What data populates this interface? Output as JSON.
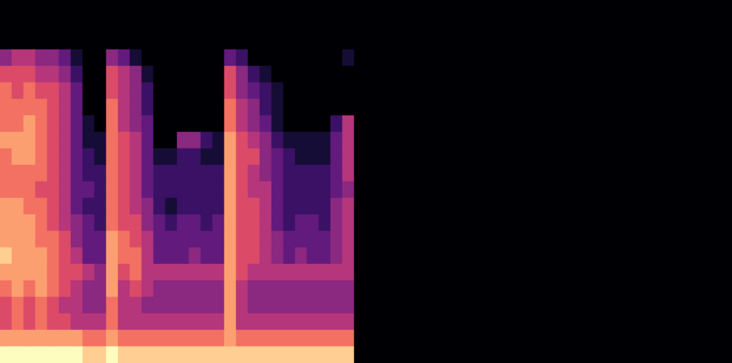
{
  "chart_data": {
    "type": "heatmap",
    "tick_labels": false,
    "cells": [
      [
        0,
        0,
        0,
        0,
        0,
        0,
        0,
        0,
        0,
        0,
        0,
        0,
        0,
        0,
        0,
        0,
        0,
        0,
        0,
        0,
        0,
        0,
        0,
        0,
        0,
        0,
        0,
        0,
        0,
        0,
        0,
        0,
        0,
        0,
        0,
        0,
        0,
        0,
        0,
        0,
        0,
        0,
        0,
        0,
        0,
        0,
        0,
        0,
        0,
        0,
        0,
        0,
        0,
        0,
        0,
        0,
        0,
        0,
        0,
        0,
        0,
        0
      ],
      [
        0,
        0,
        0,
        0,
        0,
        0,
        0,
        0,
        0,
        0,
        0,
        0,
        0,
        0,
        0,
        0,
        0,
        0,
        0,
        0,
        0,
        0,
        0,
        0,
        0,
        0,
        0,
        0,
        0,
        0,
        0,
        0,
        0,
        0,
        0,
        0,
        0,
        0,
        0,
        0,
        0,
        0,
        0,
        0,
        0,
        0,
        0,
        0,
        0,
        0,
        0,
        0,
        0,
        0,
        0,
        0,
        0,
        0,
        0,
        0,
        0,
        0
      ],
      [
        0,
        0,
        0,
        0,
        0,
        0,
        0,
        0,
        0,
        0,
        0,
        0,
        0,
        0,
        0,
        0,
        0,
        0,
        0,
        0,
        0,
        0,
        0,
        0,
        0,
        0,
        0,
        0,
        0,
        0,
        0,
        0,
        0,
        0,
        0,
        0,
        0,
        0,
        0,
        0,
        0,
        0,
        0,
        0,
        0,
        0,
        0,
        0,
        0,
        0,
        0,
        0,
        0,
        0,
        0,
        0,
        0,
        0,
        0,
        0,
        0,
        0
      ],
      [
        4,
        5,
        5,
        4,
        4,
        3,
        1,
        0,
        0,
        4,
        3,
        1,
        0,
        0,
        0,
        0,
        0,
        0,
        0,
        3,
        2,
        0,
        0,
        0,
        0,
        0,
        0,
        0,
        0,
        1,
        0,
        0,
        0,
        0,
        0,
        0,
        0,
        0,
        0,
        0,
        0,
        0,
        0,
        0,
        0,
        0,
        0,
        0,
        0,
        0,
        0,
        0,
        0,
        0,
        0,
        0,
        0,
        0,
        0,
        0,
        0,
        0
      ],
      [
        6,
        6,
        6,
        5,
        5,
        4,
        2,
        0,
        0,
        6,
        5,
        4,
        1,
        0,
        0,
        0,
        0,
        0,
        0,
        6,
        4,
        2,
        1,
        0,
        0,
        0,
        0,
        0,
        0,
        0,
        0,
        0,
        0,
        0,
        0,
        0,
        0,
        0,
        0,
        0,
        0,
        0,
        0,
        0,
        0,
        0,
        0,
        0,
        0,
        0,
        0,
        0,
        0,
        0,
        0,
        0,
        0,
        0,
        0,
        0,
        0,
        0
      ],
      [
        7,
        6,
        7,
        6,
        6,
        5,
        3,
        0,
        0,
        6,
        5,
        4,
        2,
        0,
        0,
        0,
        0,
        0,
        0,
        6,
        4,
        3,
        2,
        1,
        0,
        0,
        0,
        0,
        0,
        0,
        0,
        0,
        0,
        0,
        0,
        0,
        0,
        0,
        0,
        0,
        0,
        0,
        0,
        0,
        0,
        0,
        0,
        0,
        0,
        0,
        0,
        0,
        0,
        0,
        0,
        0,
        0,
        0,
        0,
        0,
        0,
        0
      ],
      [
        7,
        7,
        7,
        7,
        6,
        5,
        3,
        0,
        0,
        7,
        5,
        4,
        2,
        0,
        0,
        0,
        0,
        0,
        0,
        7,
        5,
        4,
        2,
        1,
        0,
        0,
        0,
        0,
        0,
        0,
        0,
        0,
        0,
        0,
        0,
        0,
        0,
        0,
        0,
        0,
        0,
        0,
        0,
        0,
        0,
        0,
        0,
        0,
        0,
        0,
        0,
        0,
        0,
        0,
        0,
        0,
        0,
        0,
        0,
        0,
        0,
        0
      ],
      [
        7,
        7,
        8,
        7,
        6,
        5,
        3,
        1,
        0,
        7,
        5,
        4,
        3,
        0,
        0,
        0,
        0,
        0,
        0,
        7,
        5,
        4,
        3,
        1,
        0,
        0,
        0,
        0,
        2,
        5,
        0,
        0,
        0,
        0,
        0,
        0,
        0,
        0,
        0,
        0,
        0,
        0,
        0,
        0,
        0,
        0,
        0,
        0,
        0,
        0,
        0,
        0,
        0,
        0,
        0,
        0,
        0,
        0,
        0,
        0,
        0,
        0
      ],
      [
        8,
        8,
        8,
        7,
        6,
        5,
        3,
        1,
        1,
        7,
        6,
        5,
        3,
        0,
        0,
        4,
        4,
        2,
        1,
        8,
        6,
        5,
        4,
        2,
        1,
        1,
        1,
        1,
        3,
        5,
        0,
        0,
        0,
        0,
        0,
        0,
        0,
        0,
        0,
        0,
        0,
        0,
        0,
        0,
        0,
        0,
        0,
        0,
        0,
        0,
        0,
        0,
        0,
        0,
        0,
        0,
        0,
        0,
        0,
        0,
        0,
        0
      ],
      [
        7,
        8,
        8,
        7,
        6,
        5,
        3,
        2,
        1,
        7,
        6,
        5,
        3,
        1,
        1,
        2,
        2,
        1,
        1,
        8,
        6,
        6,
        4,
        3,
        2,
        1,
        1,
        1,
        3,
        5,
        0,
        0,
        0,
        0,
        0,
        0,
        0,
        0,
        0,
        0,
        0,
        0,
        0,
        0,
        0,
        0,
        0,
        0,
        0,
        0,
        0,
        0,
        0,
        0,
        0,
        0,
        0,
        0,
        0,
        0,
        0,
        0
      ],
      [
        7,
        7,
        7,
        7,
        6,
        5,
        3,
        2,
        2,
        7,
        6,
        5,
        3,
        2,
        2,
        2,
        2,
        2,
        2,
        8,
        6,
        5,
        4,
        3,
        2,
        2,
        2,
        2,
        3,
        5,
        0,
        0,
        0,
        0,
        0,
        0,
        0,
        0,
        0,
        0,
        0,
        0,
        0,
        0,
        0,
        0,
        0,
        0,
        0,
        0,
        0,
        0,
        0,
        0,
        0,
        0,
        0,
        0,
        0,
        0,
        0,
        0
      ],
      [
        7,
        7,
        7,
        6,
        6,
        5,
        3,
        3,
        2,
        7,
        6,
        5,
        3,
        2,
        2,
        2,
        2,
        2,
        2,
        8,
        6,
        5,
        5,
        3,
        2,
        2,
        2,
        2,
        3,
        4,
        0,
        0,
        0,
        0,
        0,
        0,
        0,
        0,
        0,
        0,
        0,
        0,
        0,
        0,
        0,
        0,
        0,
        0,
        0,
        0,
        0,
        0,
        0,
        0,
        0,
        0,
        0,
        0,
        0,
        0,
        0,
        0
      ],
      [
        8,
        8,
        7,
        7,
        6,
        5,
        3,
        2,
        2,
        7,
        6,
        5,
        4,
        2,
        1,
        2,
        2,
        2,
        2,
        8,
        6,
        6,
        5,
        3,
        2,
        2,
        2,
        2,
        4,
        5,
        0,
        0,
        0,
        0,
        0,
        0,
        0,
        0,
        0,
        0,
        0,
        0,
        0,
        0,
        0,
        0,
        0,
        0,
        0,
        0,
        0,
        0,
        0,
        0,
        0,
        0,
        0,
        0,
        0,
        0,
        0,
        0
      ],
      [
        8,
        8,
        8,
        7,
        6,
        5,
        4,
        3,
        2,
        7,
        6,
        6,
        4,
        3,
        2,
        3,
        3,
        2,
        3,
        8,
        6,
        6,
        5,
        3,
        2,
        3,
        3,
        2,
        4,
        5,
        0,
        0,
        0,
        0,
        0,
        0,
        0,
        0,
        0,
        0,
        0,
        0,
        0,
        0,
        0,
        0,
        0,
        0,
        0,
        0,
        0,
        0,
        0,
        0,
        0,
        0,
        0,
        0,
        0,
        0,
        0,
        0
      ],
      [
        8,
        8,
        8,
        7,
        7,
        6,
        4,
        3,
        3,
        8,
        7,
        6,
        5,
        3,
        3,
        3,
        3,
        3,
        3,
        8,
        6,
        6,
        5,
        4,
        3,
        3,
        3,
        3,
        4,
        5,
        0,
        0,
        0,
        0,
        0,
        0,
        0,
        0,
        0,
        0,
        0,
        0,
        0,
        0,
        0,
        0,
        0,
        0,
        0,
        0,
        0,
        0,
        0,
        0,
        0,
        0,
        0,
        0,
        0,
        0,
        0,
        0
      ],
      [
        9,
        8,
        8,
        8,
        7,
        6,
        5,
        3,
        3,
        8,
        7,
        7,
        5,
        3,
        3,
        3,
        4,
        3,
        3,
        8,
        6,
        6,
        5,
        4,
        3,
        4,
        3,
        3,
        4,
        5,
        0,
        0,
        0,
        0,
        0,
        0,
        0,
        0,
        0,
        0,
        0,
        0,
        0,
        0,
        0,
        0,
        0,
        0,
        0,
        0,
        0,
        0,
        0,
        0,
        0,
        0,
        0,
        0,
        0,
        0,
        0,
        0
      ],
      [
        8,
        8,
        8,
        8,
        7,
        6,
        6,
        5,
        4,
        8,
        6,
        7,
        5,
        5,
        5,
        5,
        5,
        5,
        5,
        8,
        6,
        5,
        5,
        5,
        5,
        5,
        5,
        5,
        5,
        5,
        0,
        0,
        0,
        0,
        0,
        0,
        0,
        0,
        0,
        0,
        0,
        0,
        0,
        0,
        0,
        0,
        0,
        0,
        0,
        0,
        0,
        0,
        0,
        0,
        0,
        0,
        0,
        0,
        0,
        0,
        0,
        0
      ],
      [
        7,
        8,
        7,
        8,
        7,
        6,
        5,
        4,
        4,
        8,
        5,
        6,
        5,
        4,
        4,
        4,
        4,
        4,
        4,
        8,
        5,
        4,
        4,
        4,
        4,
        4,
        4,
        4,
        4,
        4,
        0,
        0,
        0,
        0,
        0,
        0,
        0,
        0,
        0,
        0,
        0,
        0,
        0,
        0,
        0,
        0,
        0,
        0,
        0,
        0,
        0,
        0,
        0,
        0,
        0,
        0,
        0,
        0,
        0,
        0,
        0,
        0
      ],
      [
        6,
        7,
        6,
        7,
        6,
        5,
        5,
        4,
        4,
        7,
        5,
        5,
        4,
        4,
        4,
        4,
        4,
        4,
        4,
        8,
        5,
        4,
        4,
        4,
        4,
        4,
        4,
        4,
        4,
        4,
        0,
        0,
        0,
        0,
        0,
        0,
        0,
        0,
        0,
        0,
        0,
        0,
        0,
        0,
        0,
        0,
        0,
        0,
        0,
        0,
        0,
        0,
        0,
        0,
        0,
        0,
        0,
        0,
        0,
        0,
        0,
        0
      ],
      [
        6,
        7,
        6,
        7,
        6,
        6,
        5,
        5,
        5,
        7,
        5,
        5,
        5,
        5,
        5,
        5,
        5,
        5,
        5,
        8,
        5,
        5,
        5,
        5,
        5,
        5,
        5,
        5,
        5,
        5,
        0,
        0,
        0,
        0,
        0,
        0,
        0,
        0,
        0,
        0,
        0,
        0,
        0,
        0,
        0,
        0,
        0,
        0,
        0,
        0,
        0,
        0,
        0,
        0,
        0,
        0,
        0,
        0,
        0,
        0,
        0,
        0
      ],
      [
        8,
        8,
        8,
        8,
        8,
        8,
        8,
        7,
        7,
        8,
        7,
        7,
        7,
        7,
        7,
        7,
        7,
        7,
        7,
        8,
        7,
        7,
        7,
        7,
        7,
        7,
        7,
        7,
        7,
        7,
        0,
        0,
        0,
        0,
        0,
        0,
        0,
        0,
        0,
        0,
        0,
        0,
        0,
        0,
        0,
        0,
        0,
        0,
        0,
        0,
        0,
        0,
        0,
        0,
        0,
        0,
        0,
        0,
        0,
        0,
        0,
        0
      ],
      [
        10,
        10,
        10,
        10,
        10,
        10,
        10,
        9,
        9,
        10,
        9,
        9,
        9,
        9,
        9,
        9,
        9,
        9,
        9,
        9,
        9,
        9,
        9,
        9,
        9,
        9,
        9,
        9,
        9,
        9,
        0,
        0,
        0,
        0,
        0,
        0,
        0,
        0,
        0,
        0,
        0,
        0,
        0,
        0,
        0,
        0,
        0,
        0,
        0,
        0,
        0,
        0,
        0,
        0,
        0,
        0,
        0,
        0,
        0,
        0,
        0,
        0
      ]
    ]
  }
}
